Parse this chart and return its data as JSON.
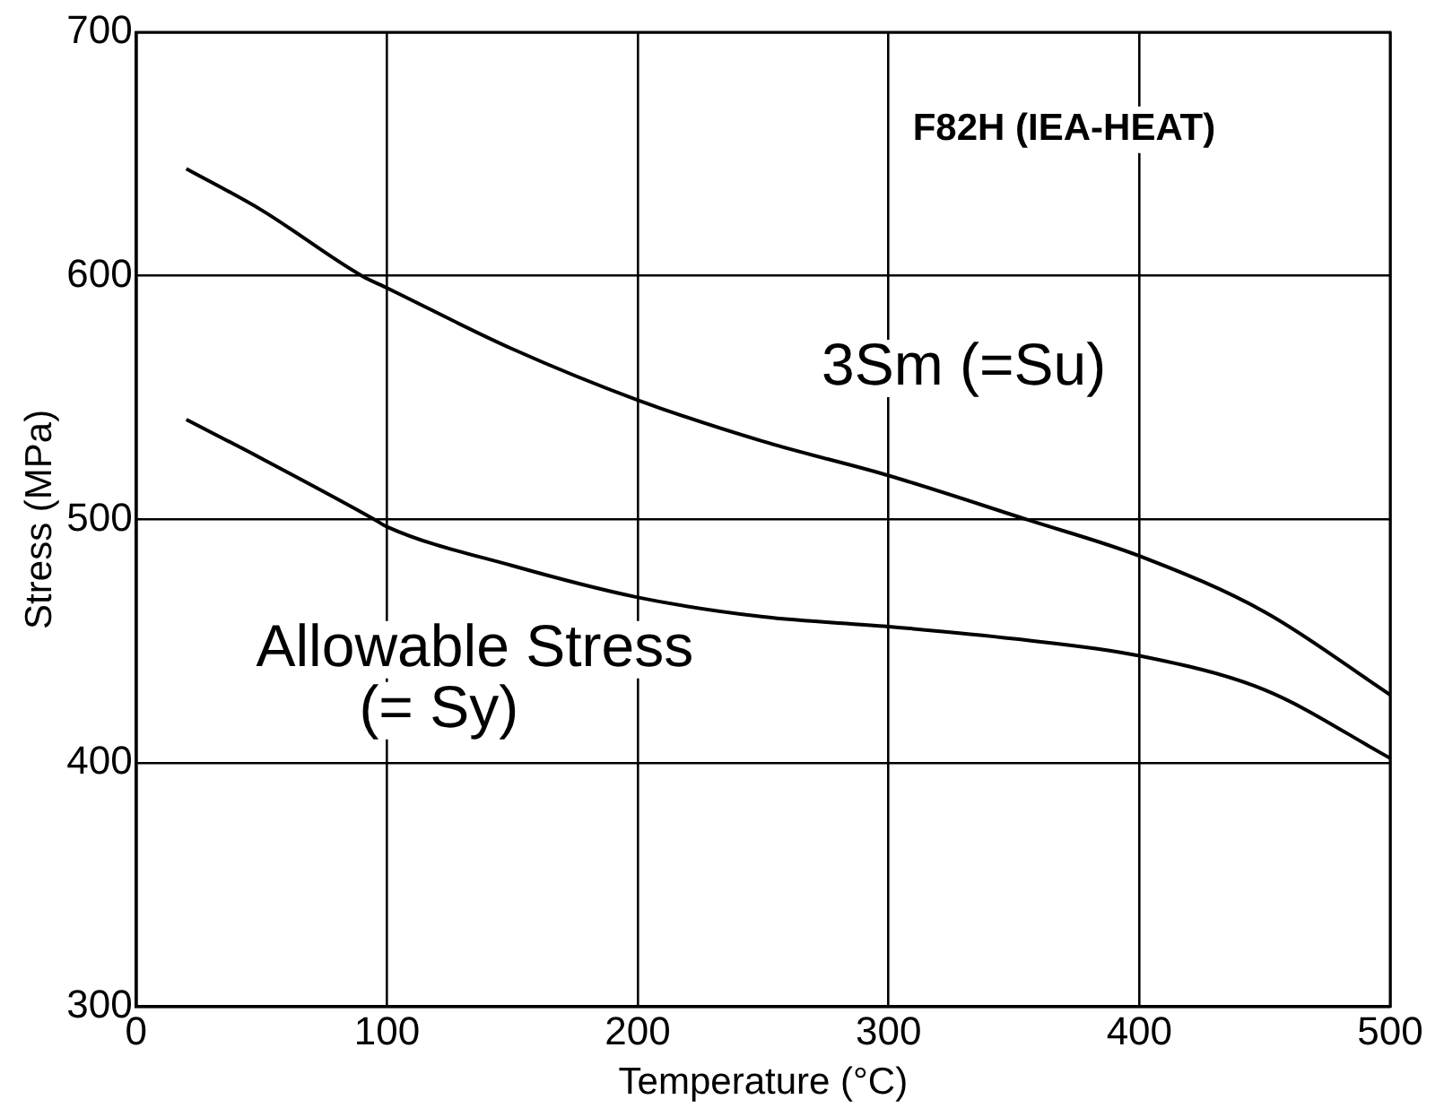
{
  "chart_data": {
    "type": "line",
    "title": "F82H (IEA-HEAT)",
    "xlabel": "Temperature (°C)",
    "ylabel": "Stress (MPa)",
    "xlim": [
      0,
      500
    ],
    "xticks": [
      0,
      100,
      200,
      300,
      400,
      500
    ],
    "ylim": [
      300,
      700
    ],
    "yticks": [
      300,
      400,
      500,
      600,
      700
    ],
    "grid": true,
    "marker": "none",
    "line_style": "solid",
    "series": [
      {
        "color": "#000000",
        "x": [
          20,
          50,
          90,
          100,
          150,
          200,
          250,
          300,
          355,
          400,
          450,
          500
        ],
        "values": [
          644,
          627,
          600,
          595,
          570,
          549,
          532,
          518,
          500,
          485,
          462,
          428
        ]
      },
      {
        "color": "#000000",
        "x": [
          20,
          50,
          95,
          100,
          150,
          200,
          250,
          300,
          350,
          400,
          450,
          500
        ],
        "values": [
          541,
          525,
          500,
          497,
          481,
          468,
          460,
          456,
          451,
          444,
          430,
          402
        ]
      }
    ],
    "annotations": [
      "3Sm (=Su)",
      "Allowable Stress\n(= Sy)"
    ]
  }
}
